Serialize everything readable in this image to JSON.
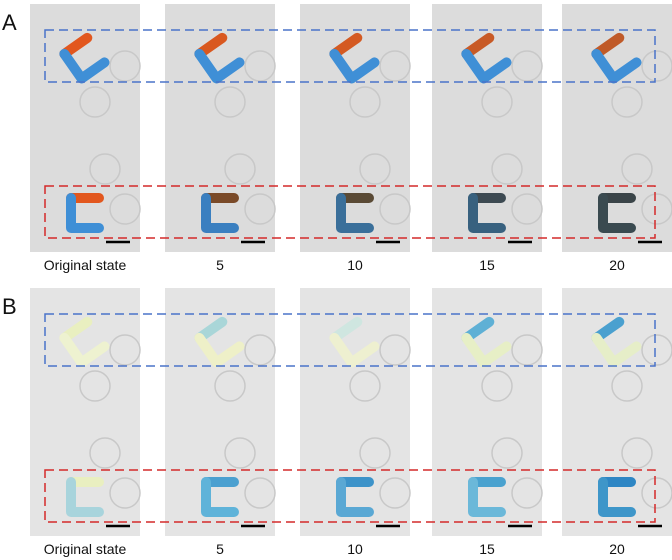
{
  "panels": [
    {
      "label": "A",
      "captions": [
        "Original state",
        "5",
        "10",
        "15",
        "20"
      ]
    },
    {
      "label": "B",
      "captions": [
        "Original state",
        "5",
        "10",
        "15",
        "20"
      ]
    }
  ]
}
